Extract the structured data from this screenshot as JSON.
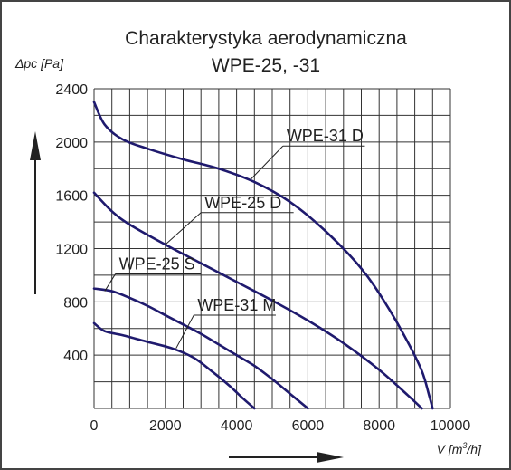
{
  "chart_data": {
    "type": "line",
    "title": "Charakterystyka aerodynamiczna",
    "subtitle": "WPE-25, -31",
    "ylabel": "Δpc [Pa]",
    "xlabel_prefix": "V [m",
    "xlabel_sup": "3",
    "xlabel_suffix": "/h]",
    "xlim": [
      0,
      10000
    ],
    "ylim": [
      0,
      2400
    ],
    "grid": true,
    "x_ticks": [
      0,
      2000,
      4000,
      6000,
      8000,
      10000
    ],
    "y_ticks": [
      400,
      800,
      1200,
      1600,
      2000,
      2400
    ],
    "x_tick_labels": [
      "0",
      "2000",
      "4000",
      "6000",
      "8000",
      "10000"
    ],
    "y_tick_labels": [
      "400",
      "800",
      "1200",
      "1600",
      "2000",
      "2400"
    ],
    "series": [
      {
        "name": "WPE-31 D",
        "x": [
          0,
          300,
          800,
          1500,
          2500,
          3500,
          4500,
          5500,
          6500,
          7500,
          8200,
          8800,
          9200,
          9400,
          9500
        ],
        "y": [
          2300,
          2130,
          2020,
          1950,
          1870,
          1800,
          1700,
          1550,
          1330,
          1050,
          780,
          500,
          280,
          100,
          0
        ]
      },
      {
        "name": "WPE-25 D",
        "x": [
          0,
          500,
          1000,
          2000,
          3000,
          4000,
          5000,
          6000,
          7000,
          8000,
          8800,
          9200
        ],
        "y": [
          1620,
          1480,
          1380,
          1230,
          1090,
          950,
          810,
          660,
          490,
          290,
          100,
          0
        ]
      },
      {
        "name": "WPE-25 S",
        "x": [
          0,
          500,
          1000,
          1500,
          2000,
          2500,
          3000,
          3500,
          4000,
          4500,
          5000,
          5500,
          6000
        ],
        "y": [
          900,
          880,
          830,
          770,
          700,
          630,
          560,
          480,
          400,
          320,
          220,
          110,
          0
        ]
      },
      {
        "name": "WPE-31 M",
        "x": [
          0,
          300,
          800,
          1500,
          2200,
          2800,
          3300,
          3800,
          4200,
          4500
        ],
        "y": [
          640,
          580,
          550,
          500,
          450,
          380,
          280,
          170,
          70,
          0
        ]
      }
    ],
    "label_anchors": [
      {
        "series": "WPE-31 D",
        "from": [
          4400,
          1720
        ],
        "to": [
          5300,
          1970
        ],
        "end": [
          7600,
          1970
        ]
      },
      {
        "series": "WPE-25 D",
        "from": [
          2000,
          1230
        ],
        "to": [
          3000,
          1470
        ],
        "end": [
          5600,
          1470
        ]
      },
      {
        "series": "WPE-25 S",
        "from": [
          300,
          880
        ],
        "to": [
          600,
          1010
        ],
        "end": [
          3000,
          1010
        ]
      },
      {
        "series": "WPE-31 M",
        "from": [
          2300,
          450
        ],
        "to": [
          2800,
          700
        ],
        "end": [
          5100,
          700
        ]
      }
    ]
  },
  "colors": {
    "series_line": "#1f1a6e",
    "grid": "#333333",
    "frame": "#444444",
    "text": "#222222",
    "arrow": "#222222"
  }
}
